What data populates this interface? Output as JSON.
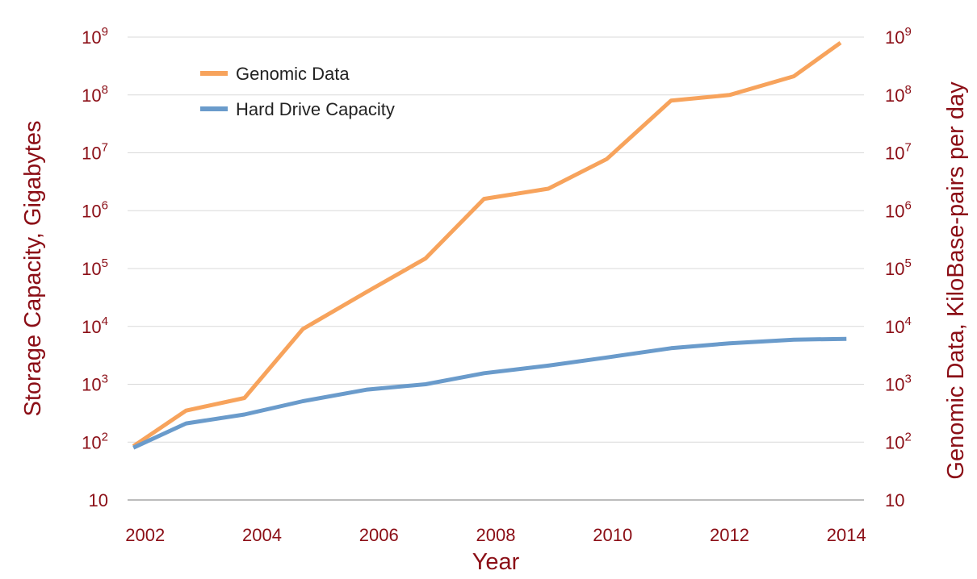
{
  "chart_data": {
    "type": "line",
    "x_ticks": [
      "2002",
      "2004",
      "2006",
      "2008",
      "2010",
      "2012",
      "2014"
    ],
    "y_scale": "log",
    "y_ticks_left": [
      {
        "base": "10",
        "exp": ""
      },
      {
        "base": "10",
        "exp": "2"
      },
      {
        "base": "10",
        "exp": "3"
      },
      {
        "base": "10",
        "exp": "4"
      },
      {
        "base": "10",
        "exp": "5"
      },
      {
        "base": "10",
        "exp": "6"
      },
      {
        "base": "10",
        "exp": "7"
      },
      {
        "base": "10",
        "exp": "8"
      },
      {
        "base": "10",
        "exp": "9"
      }
    ],
    "y_ticks_right": [
      {
        "base": "10",
        "exp": ""
      },
      {
        "base": "10",
        "exp": "2"
      },
      {
        "base": "10",
        "exp": "3"
      },
      {
        "base": "10",
        "exp": "4"
      },
      {
        "base": "10",
        "exp": "5"
      },
      {
        "base": "10",
        "exp": "6"
      },
      {
        "base": "10",
        "exp": "7"
      },
      {
        "base": "10",
        "exp": "8"
      },
      {
        "base": "10",
        "exp": "9"
      }
    ],
    "xlabel": "Year",
    "ylabel_left": "Storage Capacity, Gigabytes",
    "ylabel_right": "Genomic Data, KiloBase-pairs per day",
    "xlim": [
      2001.7,
      2014.3
    ],
    "ylim": [
      10,
      1000000000
    ],
    "grid": true,
    "legend_position": "top-left",
    "series": [
      {
        "name": "Genomic Data",
        "color": "#F7A35C",
        "axis": "right",
        "points": [
          {
            "x": 2001.8,
            "y": 85
          },
          {
            "x": 2002.7,
            "y": 350
          },
          {
            "x": 2003.7,
            "y": 580
          },
          {
            "x": 2004.7,
            "y": 9000
          },
          {
            "x": 2005.8,
            "y": 40000
          },
          {
            "x": 2006.8,
            "y": 150000
          },
          {
            "x": 2007.8,
            "y": 1600000
          },
          {
            "x": 2008.9,
            "y": 2400000
          },
          {
            "x": 2009.9,
            "y": 7800000
          },
          {
            "x": 2011.0,
            "y": 80000000
          },
          {
            "x": 2012.0,
            "y": 100000000
          },
          {
            "x": 2013.1,
            "y": 210000000
          },
          {
            "x": 2013.9,
            "y": 800000000
          }
        ]
      },
      {
        "name": "Hard Drive Capacity",
        "color": "#6A9BCB",
        "axis": "left",
        "points": [
          {
            "x": 2001.8,
            "y": 80
          },
          {
            "x": 2002.7,
            "y": 210
          },
          {
            "x": 2003.7,
            "y": 300
          },
          {
            "x": 2004.7,
            "y": 510
          },
          {
            "x": 2005.8,
            "y": 810
          },
          {
            "x": 2006.8,
            "y": 1000
          },
          {
            "x": 2007.8,
            "y": 1550
          },
          {
            "x": 2008.9,
            "y": 2100
          },
          {
            "x": 2009.9,
            "y": 2900
          },
          {
            "x": 2011.0,
            "y": 4200
          },
          {
            "x": 2012.0,
            "y": 5100
          },
          {
            "x": 2013.1,
            "y": 5900
          },
          {
            "x": 2014.0,
            "y": 6100
          }
        ]
      }
    ]
  },
  "colors": {
    "axis_text": "#8B0E16",
    "gridline": "#D9D9D9",
    "baseline": "#A6A6A6"
  }
}
